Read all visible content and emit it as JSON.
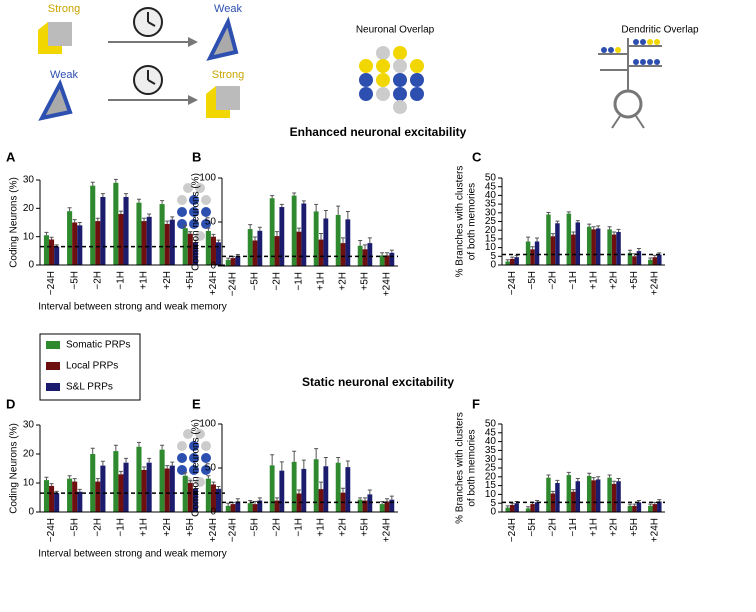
{
  "schematic": {
    "row1_left": "Strong",
    "row1_right": "Weak",
    "row2_left": "Weak",
    "row2_right": "Strong",
    "neuronal_overlap": "Neuronal Overlap",
    "dendritic_overlap": "Dendritic Overlap"
  },
  "sections": [
    "Enhanced neuronal excitability",
    "Static neuronal excitability"
  ],
  "legend": [
    {
      "name": "Somatic PRPs",
      "color": "#2f8a2f"
    },
    {
      "name": "Local PRPs",
      "color": "#6e1010"
    },
    {
      "name": "S&L PRPs",
      "color": "#1c1c6e"
    }
  ],
  "chart_data": [
    {
      "type": "bar",
      "panel": "A",
      "ylabel": [
        "Coding Neurons (%)"
      ],
      "xlabel": "Interval between strong and weak memory",
      "categories": [
        "−24H",
        "−5H",
        "−2H",
        "−1H",
        "+1H",
        "+2H",
        "+5H",
        "+24H"
      ],
      "series": [
        {
          "color": "#2f8a2f",
          "values": [
            10.5,
            19,
            28,
            29,
            22,
            21.5,
            13,
            12
          ],
          "errors": [
            1,
            1.2,
            1.2,
            1.2,
            1.2,
            1.2,
            1,
            1
          ]
        },
        {
          "color": "#6e1010",
          "values": [
            9,
            15,
            15.5,
            18,
            15.5,
            14.5,
            11,
            10
          ],
          "errors": [
            0.8,
            1,
            1,
            1,
            1,
            1,
            0.8,
            0.8
          ]
        },
        {
          "color": "#1c1c6e",
          "values": [
            6.5,
            14,
            24,
            24,
            17,
            16,
            8,
            8
          ],
          "errors": [
            0.6,
            1,
            1.2,
            1.2,
            1,
            1,
            0.8,
            0.8
          ]
        }
      ],
      "ylim": [
        0,
        30
      ],
      "yticks": [
        0,
        10,
        20,
        30
      ],
      "reference_line": 6.5
    },
    {
      "type": "bar",
      "panel": "B",
      "ylabel": [
        "Common neurons (%)"
      ],
      "categories": [
        "−24H",
        "−5H",
        "−2H",
        "−1H",
        "+1H",
        "+2H",
        "+5H",
        "+24H"
      ],
      "series": [
        {
          "color": "#2f8a2f",
          "values": [
            7,
            42,
            77,
            80,
            62,
            58,
            23,
            12
          ],
          "errors": [
            2,
            5,
            3,
            3,
            8,
            10,
            6,
            3
          ]
        },
        {
          "color": "#6e1010",
          "values": [
            9,
            29,
            34,
            39,
            30,
            26,
            19,
            12
          ],
          "errors": [
            2,
            4,
            5,
            4,
            7,
            6,
            5,
            3
          ]
        },
        {
          "color": "#1c1c6e",
          "values": [
            11,
            40,
            67,
            71,
            54,
            53,
            26,
            15
          ],
          "errors": [
            2,
            4,
            3,
            3,
            9,
            9,
            6,
            3
          ]
        }
      ],
      "ylim": [
        0,
        100
      ],
      "yticks": [
        0,
        50,
        100
      ],
      "reference_line": 11
    },
    {
      "type": "bar",
      "panel": "C",
      "ylabel": [
        "% Branches with clusters",
        "of both memories"
      ],
      "categories": [
        "−24H",
        "−5H",
        "−2H",
        "−1H",
        "+1H",
        "+2H",
        "+5H",
        "+24H"
      ],
      "series": [
        {
          "color": "#2f8a2f",
          "values": [
            2,
            13.5,
            29,
            29.5,
            22,
            20.5,
            7,
            3
          ],
          "errors": [
            1,
            2.5,
            1.2,
            1,
            1.5,
            1.5,
            1.5,
            1
          ]
        },
        {
          "color": "#6e1010",
          "values": [
            3.5,
            9,
            16.5,
            17.5,
            20.5,
            17.5,
            5,
            4.5
          ],
          "errors": [
            1,
            1.5,
            1.5,
            1.5,
            1.5,
            1.5,
            1.5,
            1
          ]
        },
        {
          "color": "#1c1c6e",
          "values": [
            4.5,
            13.5,
            24,
            24.5,
            21,
            19,
            8,
            6
          ],
          "errors": [
            1,
            2,
            1.2,
            1,
            1.5,
            1.5,
            1.5,
            1
          ]
        }
      ],
      "ylim": [
        0,
        50
      ],
      "yticks": [
        0,
        5,
        10,
        15,
        20,
        25,
        30,
        35,
        40,
        45,
        50
      ],
      "reference_line": 6
    },
    {
      "type": "bar",
      "panel": "D",
      "ylabel": [
        "Coding Neurons (%)"
      ],
      "xlabel": "Interval between strong and weak memory",
      "categories": [
        "−24H",
        "−5H",
        "−2H",
        "−1H",
        "+1H",
        "+2H",
        "+5H",
        "+24H"
      ],
      "series": [
        {
          "color": "#2f8a2f",
          "values": [
            11,
            11.5,
            20,
            21,
            22.5,
            21.5,
            12.5,
            11.5
          ],
          "errors": [
            1,
            1,
            2,
            2,
            1.5,
            1.5,
            1,
            1
          ]
        },
        {
          "color": "#6e1010",
          "values": [
            9,
            10.5,
            10.5,
            13,
            14.5,
            15,
            10,
            9.5
          ],
          "errors": [
            0.8,
            1,
            1,
            1,
            1,
            1,
            0.8,
            0.8
          ]
        },
        {
          "color": "#1c1c6e",
          "values": [
            6.5,
            7,
            16,
            17,
            17,
            16,
            8,
            8
          ],
          "errors": [
            0.6,
            0.8,
            1.5,
            1.5,
            1.5,
            1.2,
            0.8,
            0.8
          ]
        }
      ],
      "ylim": [
        0,
        30
      ],
      "yticks": [
        0,
        10,
        20,
        30
      ],
      "reference_line": 6.5
    },
    {
      "type": "bar",
      "panel": "E",
      "ylabel": [
        "Common neurons (%)"
      ],
      "categories": [
        "−24H",
        "−5H",
        "−2H",
        "−1H",
        "+1H",
        "+2H",
        "+5H",
        "+24H"
      ],
      "series": [
        {
          "color": "#2f8a2f",
          "values": [
            7,
            10,
            53,
            57,
            60,
            56,
            14,
            9
          ],
          "errors": [
            3,
            3,
            12,
            12,
            12,
            6,
            2,
            3
          ]
        },
        {
          "color": "#6e1010",
          "values": [
            9,
            9,
            13,
            21,
            26,
            22,
            13,
            12
          ],
          "errors": [
            2,
            3,
            3,
            4,
            8,
            5,
            3,
            3
          ]
        },
        {
          "color": "#1c1c6e",
          "values": [
            12,
            13,
            47,
            49,
            52,
            51,
            20,
            14
          ],
          "errors": [
            3,
            3,
            10,
            10,
            10,
            7,
            5,
            4
          ]
        }
      ],
      "ylim": [
        0,
        100
      ],
      "yticks": [
        0,
        50,
        100
      ],
      "reference_line": 11
    },
    {
      "type": "bar",
      "panel": "F",
      "ylabel": [
        "% Branches with clusters",
        "of both memories"
      ],
      "categories": [
        "−24H",
        "−5H",
        "−2H",
        "−1H",
        "+1H",
        "+2H",
        "+5H",
        "+24H"
      ],
      "series": [
        {
          "color": "#2f8a2f",
          "values": [
            2.5,
            2,
            19.5,
            21,
            20.5,
            19.5,
            3.5,
            3.5
          ],
          "errors": [
            1,
            1,
            1.5,
            1.5,
            1.5,
            1.5,
            1,
            1
          ]
        },
        {
          "color": "#6e1010",
          "values": [
            4,
            4.5,
            10.5,
            11.5,
            18,
            16,
            3.5,
            4.5
          ],
          "errors": [
            1,
            1,
            1.2,
            1.2,
            1.5,
            1.5,
            1,
            1
          ]
        },
        {
          "color": "#1c1c6e",
          "values": [
            5,
            5.5,
            16.5,
            17.5,
            18.5,
            17.5,
            5.5,
            6
          ],
          "errors": [
            1,
            1,
            1.5,
            1.5,
            1.5,
            1.5,
            1,
            1
          ]
        }
      ],
      "ylim": [
        0,
        50
      ],
      "yticks": [
        0,
        5,
        10,
        15,
        20,
        25,
        30,
        35,
        40,
        45,
        50
      ],
      "reference_line": 5.5
    }
  ]
}
